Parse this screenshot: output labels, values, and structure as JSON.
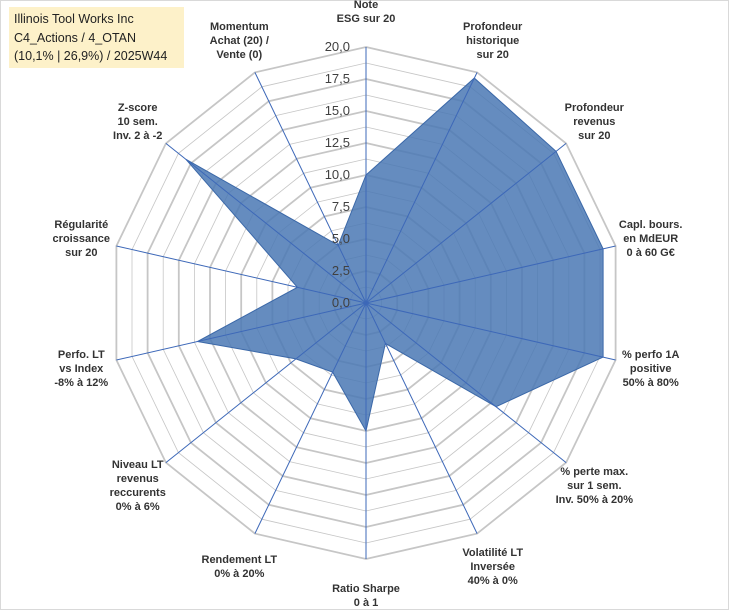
{
  "header": {
    "line1": "Illinois Tool Works Inc",
    "line2": "C4_Actions / 4_OTAN",
    "line3": "(10,1% | 26,9%) / 2025W44"
  },
  "chart_data": {
    "type": "radar",
    "r_range": [
      0,
      20
    ],
    "grid_step": 1.25,
    "ticks": [
      "0,0",
      "2,5",
      "5,0",
      "7,5",
      "10,0",
      "12,5",
      "15,0",
      "17,5",
      "20,0"
    ],
    "axes": [
      "Note\nESG sur 20",
      "Profondeur\nhistorique\nsur 20",
      "Profondeur\nrevenus\nsur 20",
      "Capl. bours.\nen MdEUR\n0 à 60 G€",
      "% perfo 1A\npositive\n50% à 80%",
      "% perte max.\nsur 1 sem.\nInv. 50% à 20%",
      "Volatilité LT\nInversée\n40% à 0%",
      "Ratio Sharpe\n0 à 1",
      "Rendement LT\n0% à 20%",
      "Niveau LT\nrevenus\nreccurents\n0% à 6%",
      "Perfo. LT\nvs Index\n-8% à 12%",
      "Régularité\ncroissance\nsur 20",
      "Z-score\n10 sem.\nInv. 2 à -2",
      "Momentum\nAchat (20) /\nVente (0)"
    ],
    "series": [
      {
        "name": "Illinois Tool Works Inc",
        "values": [
          10.0,
          19.5,
          19.0,
          19.0,
          19.0,
          13.0,
          3.5,
          10.0,
          6.0,
          7.0,
          13.5,
          5.5,
          18.0,
          5.0
        ],
        "fill": "#4a78b4",
        "stroke": "#3b68a8"
      }
    ],
    "colors": {
      "grid": "#c6c6c6",
      "spoke": "#3d68b8"
    }
  }
}
